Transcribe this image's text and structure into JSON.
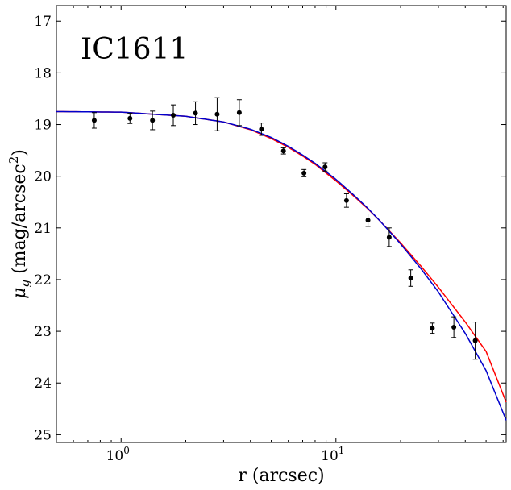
{
  "chart_data": {
    "type": "scatter",
    "title": "IC1611",
    "xlabel": "r (arcsec)",
    "ylabel_base": "μ",
    "ylabel_sub": "g",
    "ylabel_rest": " (mag/arcsec",
    "ylabel_sup": "2",
    "ylabel_close": ")",
    "xscale": "log",
    "xlim": [
      0.5,
      62
    ],
    "ylim": [
      25.15,
      16.7
    ],
    "y_inverted": true,
    "grid": false,
    "x_major_ticks": [
      {
        "value": 1,
        "base": "10",
        "exp": "0"
      },
      {
        "value": 10,
        "base": "10",
        "exp": "1"
      }
    ],
    "y_ticks": [
      17,
      18,
      19,
      20,
      21,
      22,
      23,
      24,
      25
    ],
    "y_tick_labels": [
      "17",
      "18",
      "19",
      "20",
      "21",
      "22",
      "23",
      "24",
      "25"
    ],
    "points": {
      "name": "",
      "color": "#000000",
      "x": [
        0.75,
        1.1,
        1.4,
        1.75,
        2.22,
        2.8,
        3.55,
        4.5,
        5.7,
        7.1,
        8.9,
        11.2,
        14.1,
        17.7,
        22.3,
        28.1,
        35.4,
        44.5
      ],
      "y": [
        18.92,
        18.88,
        18.92,
        18.82,
        18.78,
        18.8,
        18.77,
        19.09,
        19.51,
        19.94,
        19.82,
        20.47,
        20.85,
        21.18,
        21.97,
        22.94,
        22.92,
        23.18
      ],
      "err": [
        0.15,
        0.1,
        0.18,
        0.2,
        0.22,
        0.32,
        0.25,
        0.12,
        0.06,
        0.07,
        0.08,
        0.13,
        0.12,
        0.18,
        0.16,
        0.1,
        0.2,
        0.36
      ]
    },
    "series": [
      {
        "name": "",
        "color": "#ff0000",
        "x": [
          0.5,
          1,
          2,
          3,
          4,
          5,
          6,
          7,
          8,
          10,
          12,
          14,
          16,
          20,
          25,
          30,
          40,
          50,
          62
        ],
        "y": [
          18.75,
          18.76,
          18.84,
          18.95,
          19.1,
          19.27,
          19.44,
          19.61,
          19.77,
          20.09,
          20.37,
          20.62,
          20.86,
          21.29,
          21.75,
          22.15,
          22.82,
          23.39,
          24.37
        ]
      },
      {
        "name": "",
        "color": "#0000cc",
        "x": [
          0.5,
          1,
          2,
          3,
          4,
          5,
          6,
          7,
          8,
          10,
          12,
          14,
          16,
          20,
          25,
          30,
          40,
          50,
          62
        ],
        "y": [
          18.75,
          18.76,
          18.84,
          18.95,
          19.09,
          19.25,
          19.42,
          19.59,
          19.75,
          20.06,
          20.35,
          20.61,
          20.86,
          21.31,
          21.8,
          22.24,
          23.04,
          23.76,
          24.72
        ]
      }
    ]
  }
}
